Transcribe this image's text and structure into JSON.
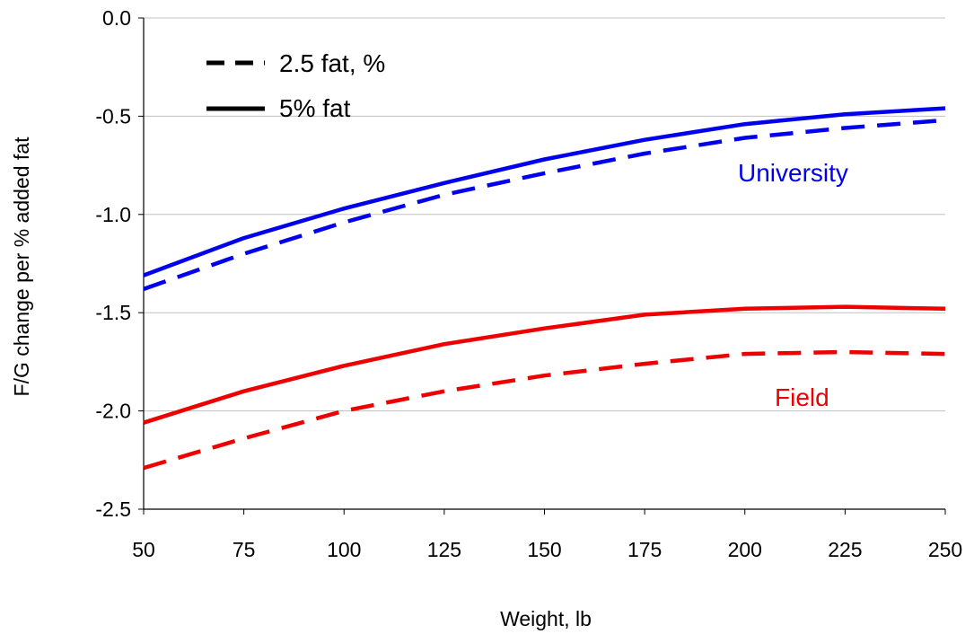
{
  "chart_data": {
    "type": "line",
    "title": "",
    "xlabel": "Weight, lb",
    "ylabel": "F/G change per % added fat",
    "xlim": [
      50,
      250
    ],
    "ylim": [
      -2.5,
      0.0
    ],
    "x_ticks": [
      "50",
      "75",
      "100",
      "125",
      "150",
      "175",
      "200",
      "225",
      "250"
    ],
    "y_ticks": [
      "0.0",
      "-0.5",
      "-1.0",
      "-1.5",
      "-2.0",
      "-2.5"
    ],
    "grid": "horizontal",
    "legend": {
      "placement": "top-left",
      "entries": [
        {
          "label": "2.5 fat, %",
          "style": "dashed"
        },
        {
          "label": "5% fat",
          "style": "solid"
        }
      ]
    },
    "annotations": [
      {
        "text": "University",
        "color": "#0000ee"
      },
      {
        "text": "Field",
        "color": "#ee0000"
      }
    ],
    "x": [
      50,
      75,
      100,
      125,
      150,
      175,
      200,
      225,
      250
    ],
    "series": [
      {
        "group": "University",
        "style": "solid",
        "color": "#0000ee",
        "values": [
          -1.31,
          -1.12,
          -0.97,
          -0.84,
          -0.72,
          -0.62,
          -0.54,
          -0.49,
          -0.46
        ]
      },
      {
        "group": "University",
        "style": "dashed",
        "color": "#0000ee",
        "values": [
          -1.38,
          -1.2,
          -1.04,
          -0.9,
          -0.79,
          -0.69,
          -0.61,
          -0.56,
          -0.52
        ]
      },
      {
        "group": "Field",
        "style": "solid",
        "color": "#ee0000",
        "values": [
          -2.06,
          -1.9,
          -1.77,
          -1.66,
          -1.58,
          -1.51,
          -1.48,
          -1.47,
          -1.48
        ]
      },
      {
        "group": "Field",
        "style": "dashed",
        "color": "#ee0000",
        "values": [
          -2.29,
          -2.14,
          -2.0,
          -1.9,
          -1.82,
          -1.76,
          -1.71,
          -1.7,
          -1.71
        ]
      }
    ]
  }
}
